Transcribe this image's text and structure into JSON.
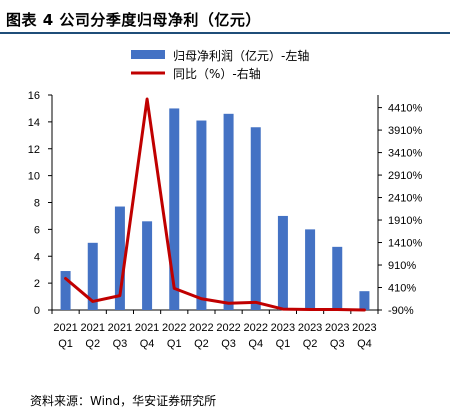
{
  "header": {
    "title": "图表 4 公司分季度归母净利（亿元）"
  },
  "footer": {
    "source": "资料来源：Wind，华安证券研究所"
  },
  "colors": {
    "bar": "#4472c4",
    "line": "#c00000",
    "rule": "#1f4e79"
  },
  "chart_data": {
    "type": "bar",
    "title": "",
    "categories": [
      "2021 Q1",
      "2021 Q2",
      "2021 Q3",
      "2021 Q4",
      "2022 Q1",
      "2022 Q2",
      "2022 Q3",
      "2022 Q4",
      "2023 Q1",
      "2023 Q2",
      "2023 Q3",
      "2023 Q4"
    ],
    "category_lines": [
      [
        "2021",
        "Q1"
      ],
      [
        "2021",
        "Q2"
      ],
      [
        "2021",
        "Q3"
      ],
      [
        "2021",
        "Q4"
      ],
      [
        "2022",
        "Q1"
      ],
      [
        "2022",
        "Q2"
      ],
      [
        "2022",
        "Q3"
      ],
      [
        "2022",
        "Q4"
      ],
      [
        "2023",
        "Q1"
      ],
      [
        "2023",
        "Q2"
      ],
      [
        "2023",
        "Q3"
      ],
      [
        "2023",
        "Q4"
      ]
    ],
    "series": [
      {
        "name": "归母净利润（亿元）-左轴",
        "type": "bar",
        "axis": "left",
        "values": [
          2.9,
          5.0,
          7.7,
          6.6,
          15.0,
          14.1,
          14.6,
          13.6,
          7.0,
          6.0,
          4.7,
          1.4
        ]
      },
      {
        "name": "同比（%）-右轴",
        "type": "line",
        "axis": "right",
        "values": [
          610,
          100,
          230,
          4600,
          390,
          160,
          60,
          80,
          -70,
          -80,
          -80,
          -90
        ]
      }
    ],
    "y_left": {
      "lim": [
        0,
        16
      ],
      "ticks": [
        "0",
        "2",
        "4",
        "6",
        "8",
        "10",
        "12",
        "14",
        "16"
      ]
    },
    "y_right": {
      "lim": [
        -90,
        4690
      ],
      "ticks": [
        "-90%",
        "410%",
        "910%",
        "1410%",
        "1910%",
        "2410%",
        "2910%",
        "3410%",
        "3910%",
        "4410%"
      ],
      "tick_values": [
        -90,
        410,
        910,
        1410,
        1910,
        2410,
        2910,
        3410,
        3910,
        4410
      ]
    },
    "legend": "top-center",
    "grid": false
  }
}
